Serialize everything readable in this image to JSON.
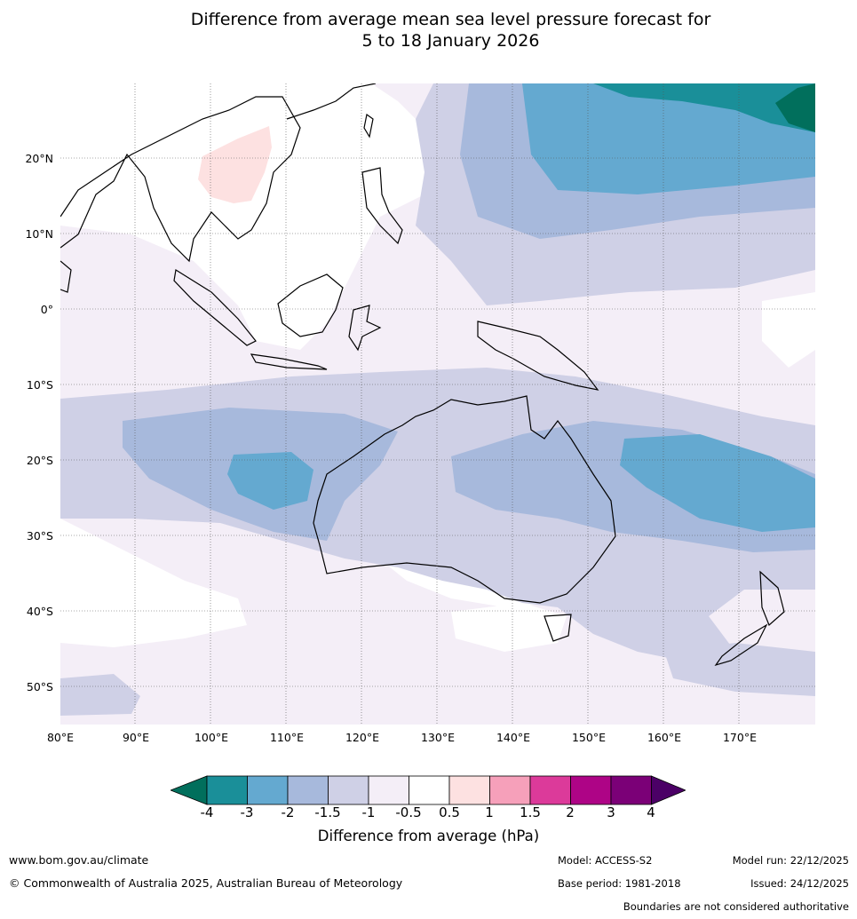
{
  "title": {
    "line1": "Difference from average mean sea level pressure forecast for",
    "line2": "5 to 18 January 2026"
  },
  "axes": {
    "lat_labels": [
      "20°N",
      "10°N",
      "0°",
      "10°S",
      "20°S",
      "30°S",
      "40°S",
      "50°S"
    ],
    "lon_labels": [
      "80°E",
      "90°E",
      "100°E",
      "110°E",
      "120°E",
      "130°E",
      "140°E",
      "150°E",
      "160°E",
      "170°E"
    ]
  },
  "colorbar": {
    "labels": [
      "-4",
      "-3",
      "-2",
      "-1.5",
      "-1",
      "-0.5",
      "0.5",
      "1",
      "1.5",
      "2",
      "3",
      "4"
    ],
    "colors": [
      "#1a8f99",
      "#64a9d0",
      "#a7b9dc",
      "#cfd0e6",
      "#f4eef7",
      "#ffffff",
      "#fde1e1",
      "#f6a0ba",
      "#dc3a9a",
      "#ae0486",
      "#7b0077"
    ],
    "low_extend_color": "#016f5c",
    "high_extend_color": "#4b0066",
    "units_label": "Difference from average (hPa)"
  },
  "footer": {
    "website": "www.bom.gov.au/climate",
    "copyright": "© Commonwealth of Australia 2025, Australian Bureau of Meteorology",
    "model": "Model: ACCESS-S2",
    "base_period": "Base period: 1981-2018",
    "model_run": "Model run: 22/12/2025",
    "issued": "Issued: 24/12/2025",
    "disclaimer": "Boundaries are not considered authoritative"
  }
}
